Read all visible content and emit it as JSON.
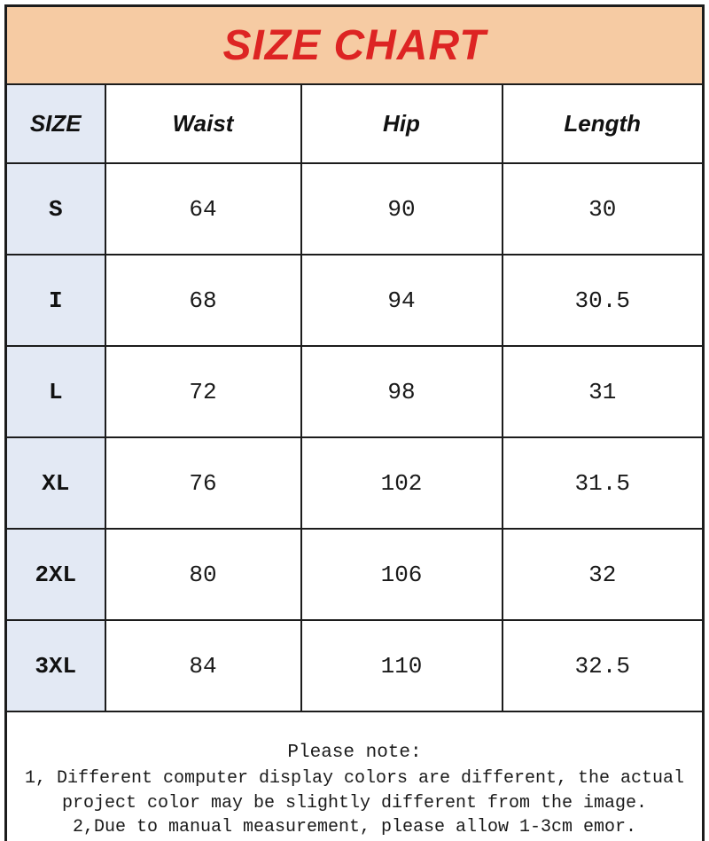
{
  "title": "SIZE CHART",
  "chart_data": {
    "type": "table",
    "title": "SIZE CHART",
    "columns": [
      "SIZE",
      "Waist",
      "Hip",
      "Length"
    ],
    "rows": [
      [
        "S",
        "64",
        "90",
        "30"
      ],
      [
        "I",
        "68",
        "94",
        "30.5"
      ],
      [
        "L",
        "72",
        "98",
        "31"
      ],
      [
        "XL",
        "76",
        "102",
        "31.5"
      ],
      [
        "2XL",
        "80",
        "106",
        "32"
      ],
      [
        "3XL",
        "84",
        "110",
        "32.5"
      ]
    ],
    "units_visible": false,
    "layout": "banner top, size column highlighted, notes footer"
  },
  "notes": {
    "title": "Please note:",
    "lines": [
      "1, Different computer display colors are different, the actual",
      "project color may be slightly different from the image.",
      "2,Due to manual measurement, please allow 1-3cm emor."
    ]
  },
  "colors": {
    "banner_bg": "#f6cba3",
    "title_red": "#dd2423",
    "size_column_bg": "#e3e9f4",
    "border": "#1c1c1c",
    "cell_bg": "#ffffff"
  }
}
